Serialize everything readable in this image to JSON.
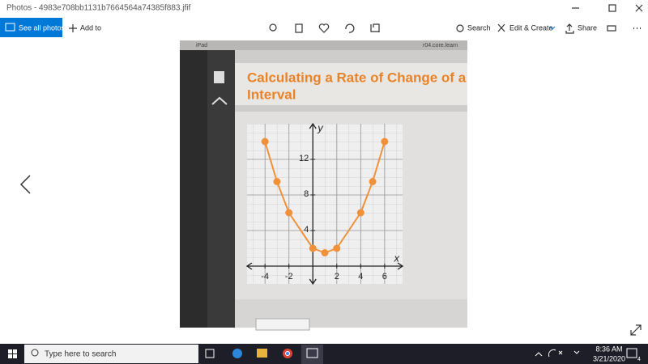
{
  "window": {
    "title": "Photos - 4983e708bb1131b7664564a74385f883.jfif"
  },
  "toolbar": {
    "see_all": "See all photos",
    "add_to": "Add to",
    "search": "Search",
    "edit_create": "Edit & Create",
    "share": "Share"
  },
  "photo": {
    "device": "iPad",
    "url": "r04.core.learn",
    "heading_line1": "Calculating a Rate of Change of a",
    "heading_line2": "Interval"
  },
  "chart_data": {
    "type": "line",
    "x": [
      -4,
      -3,
      -2,
      0,
      1,
      2,
      4,
      5,
      6
    ],
    "values": [
      14,
      9.5,
      6,
      2,
      1.5,
      2,
      6,
      9.5,
      14
    ],
    "color": "#f0913a",
    "xlabel": "x",
    "ylabel": "y",
    "xlim": [
      -5.5,
      7.5
    ],
    "ylim": [
      -2,
      16
    ],
    "xticks": [
      -4,
      -2,
      2,
      4,
      6
    ],
    "yticks": [
      4,
      8,
      12
    ],
    "grid": true
  },
  "taskbar": {
    "search_placeholder": "Type here to search",
    "time": "8:36 AM",
    "date": "3/21/2020",
    "notifications": "4"
  }
}
